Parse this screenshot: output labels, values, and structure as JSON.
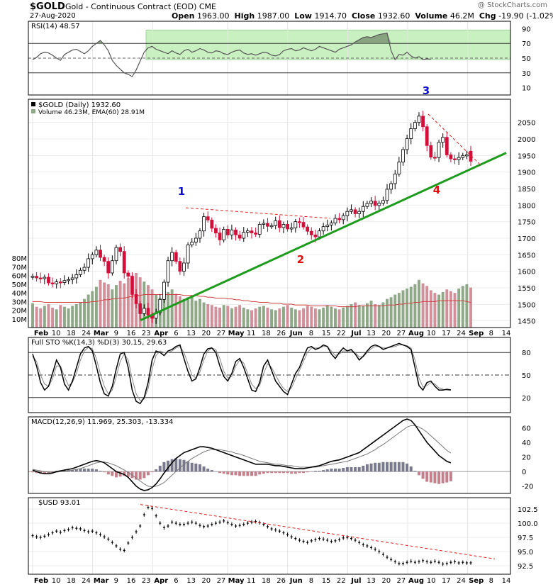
{
  "header": {
    "symbol": "$GOLD",
    "description": "Gold - Continuous Contract (EOD)",
    "exchange": "CME",
    "date": "27-Aug-2020",
    "open_label": "Open",
    "open": "1963.00",
    "high_label": "High",
    "high": "1987.00",
    "low_label": "Low",
    "low": "1914.70",
    "close_label": "Close",
    "close": "1932.60",
    "volume_label": "Volume",
    "volume": "46.2M",
    "chg_label": "Chg",
    "chg": "-19.90 (-1.02%)",
    "watermark": "@ StockCharts.com"
  },
  "colors": {
    "up": "#000000",
    "down": "#d0103a",
    "volume_up": "#8fa888",
    "volume_down": "#d2909a",
    "rsi_band": "#c8f0c0",
    "rsi_fill": "#7f9a78",
    "trendline": "#1c9b1c",
    "resistance": "#e02020",
    "wave_blue": "#1010cc",
    "wave_red": "#dd1010",
    "ema": "#d04040"
  },
  "x_axis": {
    "labels": [
      "Feb",
      "10",
      "18",
      "24",
      "Mar",
      "9",
      "16",
      "23",
      "Apr",
      "6",
      "13",
      "20",
      "27",
      "May",
      "11",
      "18",
      "26",
      "Jun",
      "8",
      "15",
      "22",
      "Jul",
      "13",
      "20",
      "27",
      "Aug",
      "10",
      "17",
      "24",
      "Sep",
      "8",
      "14"
    ],
    "bold": [
      "Feb",
      "Mar",
      "Apr",
      "May",
      "Jun",
      "Jul",
      "Aug",
      "Sep"
    ]
  },
  "chart_data": [
    {
      "type": "line",
      "title": "RSI(14) 48.57",
      "ylim": [
        0,
        100
      ],
      "ticks": [
        10,
        30,
        50,
        70,
        90
      ],
      "reference_lines": [
        30,
        50,
        70
      ],
      "values": [
        48,
        51,
        56,
        58,
        57,
        54,
        50,
        47,
        55,
        58,
        61,
        62,
        59,
        56,
        60,
        66,
        70,
        74,
        68,
        60,
        47,
        40,
        35,
        30,
        28,
        25,
        34,
        46,
        58,
        64,
        66,
        62,
        60,
        58,
        56,
        60,
        57,
        55,
        60,
        62,
        58,
        60,
        63,
        61,
        58,
        57,
        60,
        59,
        56,
        55,
        58,
        60,
        61,
        57,
        55,
        56,
        54,
        56,
        58,
        57,
        54,
        53,
        55,
        60,
        62,
        63,
        60,
        61,
        64,
        62,
        60,
        62,
        66,
        64,
        62,
        60,
        58,
        62,
        64,
        66,
        68,
        72,
        75,
        78,
        79,
        78,
        80,
        82,
        83,
        84,
        60,
        48,
        55,
        54,
        58,
        53,
        50,
        52,
        48,
        49,
        48.57
      ]
    },
    {
      "type": "candlestick",
      "title": "$GOLD (Daily) 1932.60",
      "subtitle": "Volume 46.23M, EMA(60) 28.91M",
      "ylim": [
        1430,
        2120
      ],
      "ticks": [
        1450,
        1500,
        1550,
        1600,
        1650,
        1700,
        1750,
        1800,
        1850,
        1900,
        1950,
        2000,
        2050
      ],
      "volume_ticks": [
        "10M",
        "20M",
        "30M",
        "40M",
        "50M",
        "60M",
        "70M",
        "80M"
      ],
      "volume_max": 90,
      "close": [
        1585,
        1580,
        1578,
        1582,
        1565,
        1562,
        1568,
        1566,
        1572,
        1575,
        1580,
        1590,
        1603,
        1612,
        1638,
        1650,
        1664,
        1642,
        1630,
        1595,
        1632,
        1672,
        1660,
        1595,
        1585,
        1530,
        1502,
        1472,
        1488,
        1468,
        1458,
        1475,
        1515,
        1567,
        1632,
        1657,
        1630,
        1600,
        1625,
        1680,
        1688,
        1700,
        1722,
        1765,
        1755,
        1730,
        1716,
        1695,
        1727,
        1710,
        1725,
        1710,
        1700,
        1718,
        1722,
        1716,
        1712,
        1742,
        1745,
        1736,
        1738,
        1753,
        1732,
        1742,
        1728,
        1731,
        1750,
        1748,
        1734,
        1721,
        1710,
        1704,
        1722,
        1735,
        1740,
        1746,
        1760,
        1756,
        1768,
        1781,
        1786,
        1774,
        1781,
        1796,
        1805,
        1812,
        1799,
        1806,
        1814,
        1848,
        1865,
        1894,
        1930,
        1968,
        2001,
        2031,
        2050,
        2069,
        2037,
        1980,
        1945,
        1944,
        1990,
        2005,
        1952,
        1940,
        1938,
        1944,
        1950,
        1952,
        1932.6
      ],
      "open": [
        1582,
        1585,
        1580,
        1578,
        1582,
        1565,
        1562,
        1568,
        1566,
        1572,
        1575,
        1580,
        1590,
        1603,
        1612,
        1638,
        1650,
        1664,
        1642,
        1630,
        1595,
        1632,
        1672,
        1660,
        1595,
        1585,
        1530,
        1502,
        1472,
        1488,
        1468,
        1458,
        1475,
        1515,
        1567,
        1632,
        1657,
        1630,
        1600,
        1625,
        1680,
        1688,
        1700,
        1722,
        1765,
        1755,
        1730,
        1716,
        1695,
        1727,
        1710,
        1725,
        1710,
        1700,
        1718,
        1722,
        1716,
        1712,
        1742,
        1745,
        1736,
        1738,
        1753,
        1732,
        1742,
        1728,
        1731,
        1750,
        1748,
        1734,
        1721,
        1710,
        1704,
        1722,
        1735,
        1740,
        1746,
        1760,
        1756,
        1768,
        1781,
        1786,
        1774,
        1781,
        1796,
        1805,
        1812,
        1799,
        1806,
        1814,
        1848,
        1865,
        1894,
        1930,
        1968,
        2001,
        2031,
        2050,
        2069,
        2037,
        1980,
        1945,
        1944,
        1990,
        2005,
        1952,
        1940,
        1938,
        1944,
        1950,
        1963
      ],
      "volume": [
        28,
        24,
        22,
        25,
        27,
        23,
        21,
        26,
        24,
        22,
        25,
        27,
        29,
        33,
        38,
        42,
        47,
        55,
        52,
        50,
        44,
        49,
        54,
        51,
        57,
        60,
        63,
        58,
        53,
        49,
        44,
        38,
        34,
        36,
        41,
        44,
        39,
        36,
        33,
        35,
        37,
        31,
        33,
        29,
        27,
        26,
        24,
        23,
        26,
        25,
        22,
        24,
        26,
        23,
        21,
        20,
        22,
        24,
        25,
        23,
        21,
        20,
        22,
        24,
        26,
        23,
        21,
        20,
        22,
        25,
        24,
        22,
        21,
        23,
        26,
        24,
        22,
        21,
        23,
        25,
        27,
        29,
        26,
        25,
        28,
        31,
        27,
        26,
        29,
        33,
        35,
        38,
        40,
        43,
        45,
        47,
        50,
        55,
        51,
        48,
        43,
        40,
        38,
        41,
        44,
        42,
        40,
        45,
        48,
        50,
        46.2
      ],
      "ema_volume": [
        30,
        30,
        30,
        29,
        29,
        29,
        29,
        29,
        29,
        29,
        29,
        29,
        29,
        29,
        29,
        30,
        30,
        31,
        32,
        32,
        33,
        33,
        34,
        34,
        35,
        36,
        37,
        37,
        38,
        38,
        38,
        38,
        38,
        38,
        38,
        38,
        38,
        38,
        37,
        37,
        37,
        37,
        36,
        36,
        35,
        35,
        34,
        34,
        34,
        33,
        33,
        32,
        32,
        31,
        31,
        30,
        30,
        29,
        29,
        29,
        28,
        28,
        28,
        27,
        27,
        27,
        26,
        26,
        26,
        26,
        25,
        25,
        25,
        25,
        25,
        25,
        25,
        24,
        24,
        24,
        24,
        24,
        25,
        25,
        25,
        25,
        25,
        25,
        25,
        26,
        26,
        26,
        27,
        27,
        28,
        28,
        29,
        29,
        30,
        30,
        30,
        30,
        31,
        31,
        31,
        31,
        31,
        31,
        31,
        30,
        28.91
      ],
      "annotations": [
        {
          "label": "1",
          "color": "blue"
        },
        {
          "label": "2",
          "color": "red"
        },
        {
          "label": "3",
          "color": "blue"
        },
        {
          "label": "4",
          "color": "red"
        }
      ],
      "trendline": {
        "from": [
          1452,
          1930
        ],
        "to": [
          1896,
          1958
        ]
      },
      "resistance_line": {
        "from": [
          1795,
          1760
        ],
        "to": [
          2069,
          1920
        ]
      }
    },
    {
      "type": "line",
      "title": "Full STO %K(14,3) %D(3) 30.15, 29.63",
      "ylim": [
        0,
        100
      ],
      "ticks": [
        20,
        50,
        80
      ],
      "series": [
        {
          "name": "%K",
          "values": [
            78,
            62,
            40,
            30,
            35,
            52,
            70,
            60,
            38,
            30,
            42,
            60,
            78,
            86,
            88,
            82,
            62,
            40,
            25,
            22,
            35,
            58,
            78,
            80,
            60,
            30,
            15,
            12,
            20,
            40,
            70,
            82,
            80,
            76,
            82,
            84,
            88,
            90,
            72,
            55,
            42,
            45,
            60,
            78,
            85,
            86,
            80,
            62,
            48,
            42,
            52,
            68,
            72,
            60,
            45,
            30,
            28,
            40,
            62,
            70,
            56,
            42,
            35,
            28,
            24,
            38,
            52,
            60,
            74,
            86,
            88,
            84,
            86,
            90,
            88,
            78,
            72,
            80,
            86,
            82,
            84,
            78,
            70,
            75,
            82,
            88,
            90,
            88,
            84,
            86,
            88,
            90,
            92,
            90,
            88,
            84,
            60,
            36,
            30,
            40,
            42,
            35,
            30,
            30,
            31,
            30.15
          ]
        },
        {
          "name": "%D",
          "values": [
            75,
            68,
            50,
            38,
            35,
            45,
            62,
            62,
            48,
            36,
            40,
            52,
            70,
            82,
            87,
            85,
            72,
            52,
            35,
            25,
            30,
            48,
            68,
            78,
            70,
            45,
            25,
            16,
            18,
            32,
            58,
            76,
            82,
            80,
            80,
            82,
            86,
            88,
            80,
            65,
            50,
            46,
            54,
            70,
            82,
            86,
            84,
            72,
            55,
            46,
            48,
            62,
            70,
            66,
            52,
            38,
            32,
            36,
            52,
            65,
            60,
            50,
            40,
            32,
            28,
            33,
            45,
            56,
            68,
            80,
            86,
            86,
            86,
            88,
            88,
            82,
            76,
            78,
            82,
            82,
            82,
            80,
            74,
            74,
            80,
            85,
            88,
            88,
            86,
            86,
            87,
            88,
            90,
            90,
            89,
            86,
            70,
            46,
            34,
            36,
            40,
            38,
            33,
            31,
            30,
            29.63
          ]
        }
      ]
    },
    {
      "type": "line",
      "title": "MACD(12,26,9) 11.969, 25.303, -13.334",
      "ylim": [
        -30,
        75
      ],
      "ticks": [
        -20,
        0,
        20,
        40,
        60
      ],
      "series": [
        {
          "name": "MACD",
          "values": [
            2,
            0,
            -2,
            -3,
            -3,
            -2,
            0,
            1,
            2,
            3,
            4,
            6,
            8,
            10,
            12,
            14,
            15,
            14,
            12,
            8,
            4,
            0,
            -2,
            -4,
            -8,
            -14,
            -20,
            -24,
            -26,
            -25,
            -22,
            -17,
            -10,
            -2,
            5,
            12,
            18,
            22,
            26,
            28,
            30,
            32,
            34,
            34,
            33,
            32,
            30,
            28,
            26,
            24,
            22,
            20,
            18,
            16,
            14,
            12,
            10,
            10,
            10,
            10,
            9,
            8,
            8,
            7,
            6,
            5,
            4,
            4,
            4,
            5,
            6,
            7,
            8,
            10,
            12,
            14,
            15,
            16,
            18,
            20,
            22,
            24,
            26,
            30,
            34,
            38,
            42,
            46,
            50,
            54,
            58,
            62,
            66,
            70,
            72,
            70,
            64,
            56,
            48,
            40,
            34,
            28,
            22,
            18,
            14,
            11.969
          ]
        },
        {
          "name": "Signal",
          "values": [
            3,
            2,
            1,
            0,
            -1,
            -1,
            -1,
            0,
            0,
            1,
            2,
            3,
            4,
            6,
            8,
            10,
            12,
            13,
            13,
            12,
            10,
            8,
            5,
            2,
            -1,
            -5,
            -9,
            -13,
            -17,
            -20,
            -21,
            -20,
            -18,
            -15,
            -10,
            -5,
            0,
            5,
            10,
            14,
            18,
            21,
            24,
            27,
            29,
            30,
            30,
            30,
            29,
            28,
            27,
            25,
            24,
            22,
            20,
            18,
            16,
            14,
            13,
            12,
            11,
            10,
            10,
            9,
            8,
            8,
            7,
            6,
            6,
            6,
            6,
            6,
            7,
            8,
            9,
            10,
            11,
            12,
            13,
            14,
            16,
            18,
            20,
            22,
            24,
            27,
            30,
            34,
            37,
            41,
            45,
            49,
            53,
            57,
            61,
            63,
            63,
            61,
            58,
            54,
            49,
            44,
            39,
            34,
            29,
            25.303
          ]
        }
      ]
    },
    {
      "type": "line",
      "title": "$USD 93.01",
      "ylim": [
        91,
        104.5
      ],
      "ticks": [
        92.5,
        95.0,
        97.5,
        100.0,
        102.5
      ],
      "values": [
        97.8,
        97.6,
        97.5,
        97.7,
        98.0,
        98.3,
        98.6,
        98.4,
        98.7,
        98.9,
        99.2,
        99.1,
        99.0,
        98.7,
        98.5,
        98.6,
        98.3,
        98.0,
        97.6,
        97.2,
        96.6,
        96.0,
        95.4,
        95.2,
        96.5,
        97.5,
        98.5,
        99.5,
        101.5,
        102.8,
        102.6,
        101.3,
        100.0,
        99.2,
        99.5,
        100.2,
        100.0,
        99.8,
        99.8,
        100.0,
        100.2,
        100.0,
        99.6,
        99.4,
        99.5,
        99.8,
        100.0,
        100.2,
        100.4,
        100.1,
        99.8,
        99.5,
        99.6,
        99.8,
        100.0,
        100.2,
        100.3,
        100.1,
        99.8,
        99.4,
        99.0,
        98.8,
        98.6,
        98.3,
        98.0,
        97.6,
        97.3,
        97.0,
        96.8,
        96.6,
        96.9,
        97.1,
        97.3,
        97.2,
        97.0,
        96.8,
        96.9,
        97.1,
        97.4,
        97.5,
        97.3,
        97.0,
        96.6,
        96.2,
        96.0,
        95.7,
        95.4,
        95.0,
        94.5,
        94.0,
        93.6,
        93.2,
        92.9,
        92.9,
        93.1,
        93.3,
        93.1,
        93.2,
        93.4,
        93.2,
        93.1,
        93.3,
        93.1,
        92.8,
        92.9,
        93.1,
        93.2,
        93.0,
        93.1,
        93.0,
        93.01
      ],
      "resistance_line": {
        "from": [
          102.9,
          "start"
        ],
        "to": [
          93.7,
          "end"
        ]
      }
    }
  ]
}
